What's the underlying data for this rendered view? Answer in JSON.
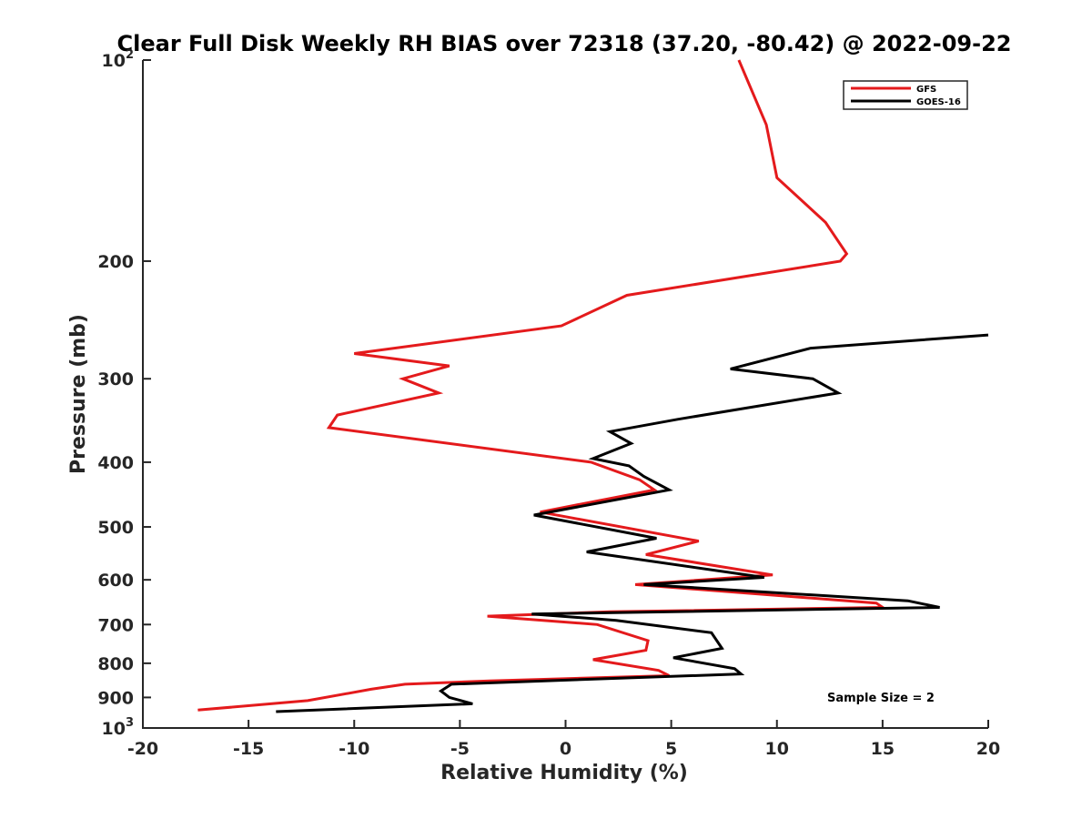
{
  "chart_data": {
    "type": "line",
    "title": "Clear Full Disk Weekly RH BIAS over 72318 (37.20, -80.42) @ 2022-09-22",
    "xlabel": "Relative Humidity (%)",
    "ylabel": "Pressure (mb)",
    "xlim": [
      -20,
      20
    ],
    "ylim": [
      100,
      1000
    ],
    "yscale": "log",
    "yreversed": true,
    "grid": false,
    "legend_position": "top-right",
    "x_ticks": [
      -20,
      -15,
      -10,
      -5,
      0,
      5,
      10,
      15,
      20
    ],
    "x_tick_labels": [
      "-20",
      "-15",
      "-10",
      "-5",
      "0",
      "5",
      "10",
      "15",
      "20"
    ],
    "y_ticks": [
      {
        "value": 100,
        "base": "10",
        "exp": "2"
      },
      {
        "value": 200,
        "label": "200"
      },
      {
        "value": 300,
        "label": "300"
      },
      {
        "value": 400,
        "label": "400"
      },
      {
        "value": 500,
        "label": "500"
      },
      {
        "value": 600,
        "label": "600"
      },
      {
        "value": 700,
        "label": "700"
      },
      {
        "value": 800,
        "label": "800"
      },
      {
        "value": 900,
        "label": "900"
      },
      {
        "value": 1000,
        "base": "10",
        "exp": "3"
      }
    ],
    "series": [
      {
        "name": "GFS",
        "color": "#e41a1c",
        "points": [
          [
            8.2,
            100
          ],
          [
            9.5,
            125
          ],
          [
            10.0,
            150
          ],
          [
            12.3,
            175
          ],
          [
            13.3,
            195
          ],
          [
            13.0,
            200
          ],
          [
            2.9,
            225
          ],
          [
            -0.2,
            250
          ],
          [
            -10.0,
            275
          ],
          [
            -5.5,
            287
          ],
          [
            -7.7,
            300
          ],
          [
            -6.0,
            315
          ],
          [
            -10.8,
            340
          ],
          [
            -11.2,
            355
          ],
          [
            1.2,
            400
          ],
          [
            3.5,
            425
          ],
          [
            4.2,
            440
          ],
          [
            -1.2,
            475
          ],
          [
            6.3,
            525
          ],
          [
            3.8,
            550
          ],
          [
            9.8,
            590
          ],
          [
            3.3,
            610
          ],
          [
            14.7,
            650
          ],
          [
            15.0,
            660
          ],
          [
            2.1,
            670
          ],
          [
            -3.7,
            680
          ],
          [
            1.5,
            700
          ],
          [
            3.9,
            740
          ],
          [
            3.8,
            765
          ],
          [
            1.3,
            790
          ],
          [
            4.4,
            820
          ],
          [
            4.9,
            835
          ],
          [
            -3.6,
            850
          ],
          [
            -7.6,
            860
          ],
          [
            -9.2,
            875
          ],
          [
            -12.2,
            910
          ],
          [
            -17.4,
            940
          ]
        ]
      },
      {
        "name": "GOES-16",
        "color": "#000000",
        "points": [
          [
            20.0,
            258
          ],
          [
            11.6,
            270
          ],
          [
            7.8,
            290
          ],
          [
            11.7,
            300
          ],
          [
            12.9,
            315
          ],
          [
            5.3,
            345
          ],
          [
            2.1,
            360
          ],
          [
            3.1,
            375
          ],
          [
            1.3,
            395
          ],
          [
            3.0,
            405
          ],
          [
            3.7,
            420
          ],
          [
            4.9,
            440
          ],
          [
            -1.5,
            480
          ],
          [
            4.3,
            520
          ],
          [
            1.0,
            545
          ],
          [
            9.4,
            595
          ],
          [
            3.7,
            610
          ],
          [
            16.2,
            645
          ],
          [
            17.7,
            660
          ],
          [
            -1.6,
            675
          ],
          [
            2.4,
            690
          ],
          [
            6.9,
            720
          ],
          [
            7.4,
            760
          ],
          [
            5.1,
            785
          ],
          [
            8.0,
            815
          ],
          [
            8.3,
            830
          ],
          [
            -1.0,
            850
          ],
          [
            -5.4,
            860
          ],
          [
            -5.9,
            880
          ],
          [
            -5.5,
            900
          ],
          [
            -4.4,
            920
          ],
          [
            -13.7,
            945
          ]
        ]
      }
    ],
    "annotation": "Sample Size = 2"
  }
}
